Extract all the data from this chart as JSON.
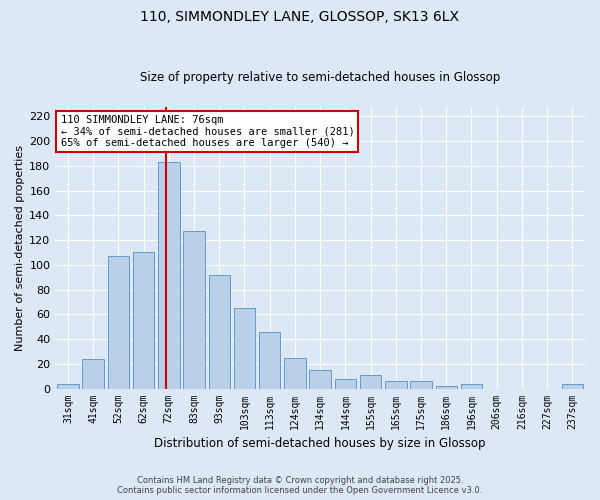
{
  "title1": "110, SIMMONDLEY LANE, GLOSSOP, SK13 6LX",
  "title2": "Size of property relative to semi-detached houses in Glossop",
  "xlabel": "Distribution of semi-detached houses by size in Glossop",
  "ylabel": "Number of semi-detached properties",
  "categories": [
    "31sqm",
    "41sqm",
    "52sqm",
    "62sqm",
    "72sqm",
    "83sqm",
    "93sqm",
    "103sqm",
    "113sqm",
    "124sqm",
    "134sqm",
    "144sqm",
    "155sqm",
    "165sqm",
    "175sqm",
    "186sqm",
    "196sqm",
    "206sqm",
    "216sqm",
    "227sqm",
    "237sqm"
  ],
  "values": [
    4,
    24,
    107,
    110,
    183,
    127,
    92,
    65,
    46,
    25,
    15,
    8,
    11,
    6,
    6,
    2,
    4,
    0,
    0,
    0,
    4
  ],
  "bar_color": "#b8d0e8",
  "bar_edge_color": "#6699cc",
  "annotation_title": "110 SIMMONDLEY LANE: 76sqm",
  "annotation_line1": "← 34% of semi-detached houses are smaller (281)",
  "annotation_line2": "65% of semi-detached houses are larger (540) →",
  "annotation_box_color": "#ffffff",
  "annotation_border_color": "#cc0000",
  "vline_color": "#cc0000",
  "bg_color": "#dce8f5",
  "ylim": [
    0,
    228
  ],
  "yticks": [
    0,
    20,
    40,
    60,
    80,
    100,
    120,
    140,
    160,
    180,
    200,
    220
  ],
  "footer1": "Contains HM Land Registry data © Crown copyright and database right 2025.",
  "footer2": "Contains public sector information licensed under the Open Government Licence v3.0."
}
